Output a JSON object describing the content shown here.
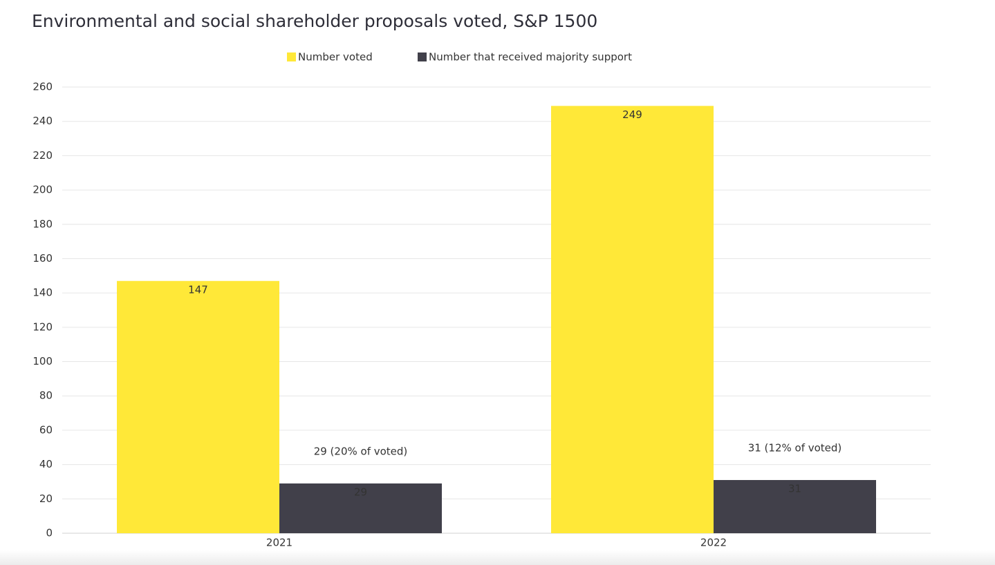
{
  "chart_data": {
    "type": "bar",
    "title": "Environmental and social shareholder proposals voted, S&P 1500",
    "categories": [
      "2021",
      "2022"
    ],
    "series": [
      {
        "name": "Number voted",
        "color": "#ffe838",
        "values": [
          147,
          249
        ]
      },
      {
        "name": "Number that received majority support",
        "color": "#41404a",
        "values": [
          29,
          31
        ]
      }
    ],
    "annotations": [
      "29 (20% of voted)",
      "31 (12% of voted)"
    ],
    "ylim": [
      0,
      260
    ],
    "yticks": [
      0,
      20,
      40,
      60,
      80,
      100,
      120,
      140,
      160,
      180,
      200,
      220,
      240,
      260
    ],
    "grid": true,
    "legend": "top"
  }
}
